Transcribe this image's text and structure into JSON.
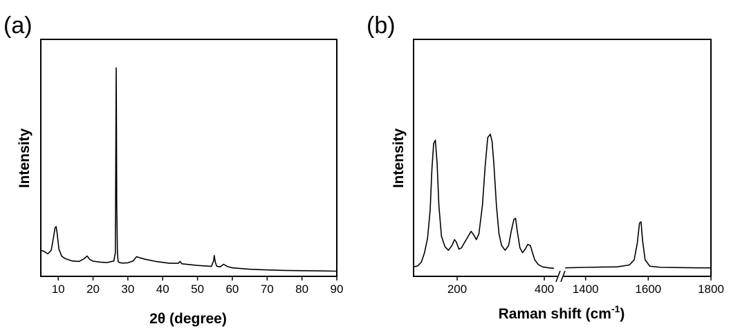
{
  "chart_data": [
    {
      "panel_label": "(a)",
      "type": "line",
      "title": "",
      "xlabel": "2θ (degree)",
      "ylabel": "Intensity",
      "xlim": [
        5,
        90
      ],
      "ylim": [
        0,
        100
      ],
      "x_ticks": [
        10,
        20,
        30,
        40,
        50,
        60,
        70,
        80,
        90
      ],
      "y_ticks_shown": false,
      "grid": false,
      "legend": "none",
      "series": [
        {
          "x": [
            5,
            6,
            7,
            8,
            8.6,
            9.1,
            9.4,
            9.7,
            10.2,
            11,
            12,
            14,
            16,
            17.5,
            18.3,
            19,
            20,
            22,
            24,
            26,
            26.4,
            26.6,
            26.65,
            26.7,
            26.8,
            27.0,
            27.2,
            27.6,
            28.5,
            30,
            31.5,
            32.5,
            33.5,
            35,
            38,
            42,
            44.5,
            45,
            45.5,
            50,
            54,
            54.6,
            54.8,
            55.1,
            55.5,
            56.5,
            57.5,
            58.5,
            60,
            65,
            70,
            75,
            80,
            85,
            90
          ],
          "y": [
            11,
            10.5,
            9.5,
            11,
            16,
            20.5,
            21,
            18,
            11.5,
            8.5,
            7.5,
            6.5,
            6.3,
            7.5,
            8.6,
            7.2,
            6.4,
            6.0,
            5.8,
            6.5,
            10,
            72,
            88,
            72,
            30,
            10,
            6.2,
            5.8,
            5.6,
            5.7,
            6.5,
            8.3,
            7.8,
            7.2,
            6.3,
            5.5,
            5.5,
            6.3,
            5.3,
            4.6,
            4.2,
            6.5,
            8.8,
            6.0,
            4.3,
            4.0,
            5.1,
            4.2,
            3.6,
            3.0,
            2.7,
            2.5,
            2.4,
            2.3,
            2.2
          ]
        }
      ]
    },
    {
      "panel_label": "(b)",
      "type": "line",
      "title": "",
      "xlabel": "Raman shift (cm",
      "xlabel_sup": "-1",
      "xlabel_end": ")",
      "ylabel": "Intensity",
      "broken_axis": true,
      "xlim_segments": [
        [
          100,
          430
        ],
        [
          1330,
          1800
        ]
      ],
      "ylim": [
        0,
        100
      ],
      "x_ticks": [
        200,
        400,
        1400,
        1600,
        1800
      ],
      "y_ticks_shown": false,
      "grid": false,
      "legend": "none",
      "series": [
        {
          "segment": 0,
          "x": [
            100,
            110,
            118,
            125,
            132,
            138,
            142,
            146,
            150,
            154,
            158,
            164,
            172,
            180,
            188,
            194,
            198,
            204,
            210,
            216,
            224,
            232,
            238,
            244,
            250,
            258,
            264,
            270,
            276,
            280,
            284,
            290,
            296,
            302,
            310,
            318,
            324,
            330,
            334,
            338,
            344,
            350,
            356,
            362,
            368,
            372,
            378,
            386,
            396,
            410,
            422
          ],
          "y": [
            4,
            4.5,
            6,
            10,
            16,
            28,
            45,
            56,
            57.5,
            48,
            30,
            17,
            12.5,
            11,
            13,
            15.5,
            14.5,
            11.5,
            12,
            14,
            16.5,
            19,
            17.5,
            15.5,
            18,
            30,
            46,
            58.5,
            60,
            57,
            48,
            30,
            18,
            13,
            11,
            13,
            19,
            24,
            24.5,
            19,
            12,
            10,
            11.5,
            13.5,
            13,
            10.5,
            7,
            5,
            4,
            3.6,
            3.4
          ]
        },
        {
          "segment": 1,
          "x": [
            1335,
            1400,
            1450,
            1500,
            1540,
            1555,
            1565,
            1572,
            1577,
            1582,
            1590,
            1605,
            1640,
            1700,
            1760,
            1800
          ],
          "y": [
            3.6,
            3.8,
            3.9,
            4.0,
            4.8,
            7,
            14,
            22.5,
            23,
            15,
            7,
            4.3,
            3.8,
            3.7,
            3.6,
            3.6
          ]
        }
      ]
    }
  ]
}
